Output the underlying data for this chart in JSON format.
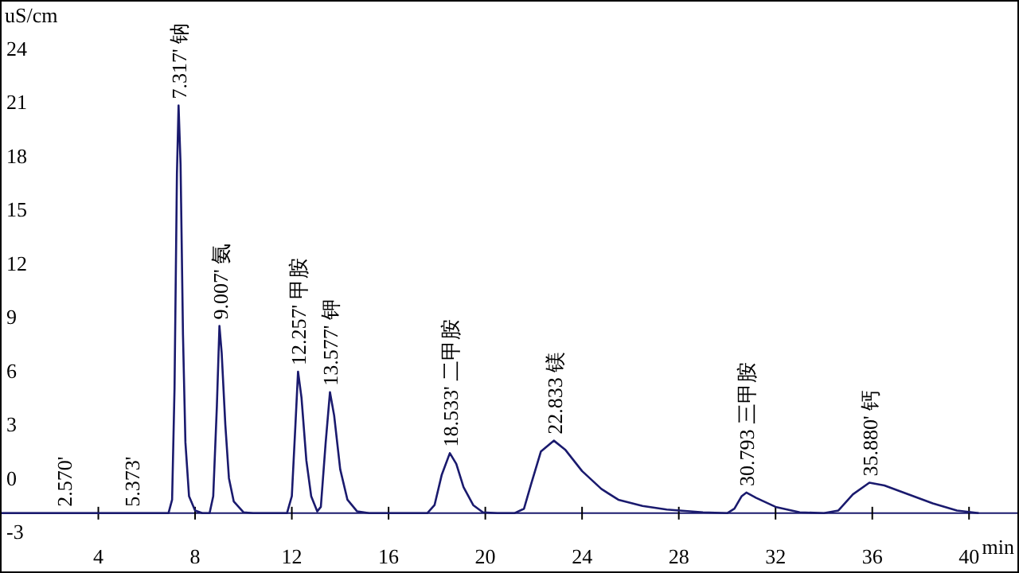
{
  "chart_data": {
    "type": "line",
    "xlabel": "min",
    "ylabel": "uS/cm",
    "x": [
      0,
      6.9,
      7.05,
      7.15,
      7.25,
      7.317,
      7.4,
      7.5,
      7.6,
      7.75,
      8.0,
      8.3,
      8.6,
      8.75,
      8.9,
      9.007,
      9.1,
      9.25,
      9.4,
      9.6,
      10.0,
      10.4,
      11.8,
      12.0,
      12.15,
      12.257,
      12.4,
      12.6,
      12.8,
      13.05,
      13.2,
      13.4,
      13.577,
      13.75,
      14.0,
      14.3,
      14.7,
      15.2,
      17.6,
      17.9,
      18.2,
      18.533,
      18.8,
      19.1,
      19.5,
      19.9,
      20.5,
      21.2,
      21.6,
      21.9,
      22.3,
      22.833,
      23.3,
      24,
      24.8,
      25.5,
      26.5,
      27.5,
      29,
      30,
      30.3,
      30.6,
      30.793,
      31.2,
      32,
      33,
      34,
      34.6,
      35.2,
      35.88,
      36.5,
      37.5,
      38.5,
      39.5,
      40.4
    ],
    "series": [
      {
        "color": "#1a1a6e",
        "values": [
          -1.95,
          -1.95,
          -1.2,
          5,
          17,
          20.8,
          17.5,
          8,
          2,
          -1.0,
          -1.8,
          -1.95,
          -1.95,
          -1.0,
          4,
          8.5,
          7,
          3,
          0,
          -1.3,
          -1.9,
          -1.95,
          -1.95,
          -1.0,
          3,
          5.95,
          4.5,
          1.0,
          -1.0,
          -1.85,
          -1.6,
          2,
          4.8,
          3.5,
          0.5,
          -1.2,
          -1.85,
          -1.95,
          -1.95,
          -1.5,
          0.2,
          1.4,
          0.8,
          -0.5,
          -1.5,
          -1.9,
          -1.95,
          -1.95,
          -1.7,
          -0.3,
          1.5,
          2.1,
          1.6,
          0.4,
          -0.6,
          -1.2,
          -1.55,
          -1.75,
          -1.9,
          -1.95,
          -1.7,
          -1.0,
          -0.8,
          -1.1,
          -1.6,
          -1.9,
          -1.95,
          -1.8,
          -0.9,
          -0.25,
          -0.4,
          -0.9,
          -1.4,
          -1.8,
          -1.95
        ]
      }
    ],
    "xlim": [
      0,
      42
    ],
    "ylim": [
      -5.2,
      26.6
    ],
    "xticks": [
      4,
      8,
      12,
      16,
      20,
      24,
      28,
      32,
      36,
      40
    ],
    "yticks": [
      -3,
      0,
      3,
      6,
      9,
      12,
      15,
      18,
      21,
      24
    ],
    "ref_lines": [
      {
        "axis": "y",
        "value": -1.95,
        "color": "#1a1a6e"
      }
    ],
    "annotations": [
      {
        "text": "2.570'",
        "x": 2.57,
        "y": -1.95
      },
      {
        "text": "5.373'",
        "x": 5.373,
        "y": -1.95
      },
      {
        "text": "7.317' 钠",
        "x": 7.317,
        "y": 20.8
      },
      {
        "text": "9.007' 氨",
        "x": 9.007,
        "y": 8.5
      },
      {
        "text": "12.257' 甲胺",
        "x": 12.257,
        "y": 5.95
      },
      {
        "text": "13.577' 钾",
        "x": 13.577,
        "y": 4.8
      },
      {
        "text": "18.533' 二甲胺",
        "x": 18.533,
        "y": 1.4
      },
      {
        "text": "22.833 镁",
        "x": 22.833,
        "y": 2.1
      },
      {
        "text": "30.793 三甲胺",
        "x": 30.793,
        "y": -0.8
      },
      {
        "text": "35.880' 钙",
        "x": 35.88,
        "y": -0.25
      }
    ]
  }
}
